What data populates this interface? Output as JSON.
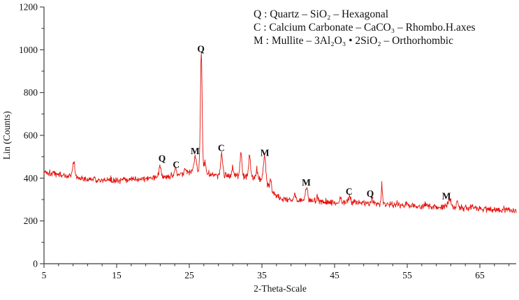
{
  "figure": {
    "kind": "xrd-diffractogram",
    "background": "#ffffff"
  },
  "chart_data": {
    "type": "line",
    "title": "",
    "xlabel": "2-Theta-Scale",
    "ylabel": "Lin (Counts)",
    "xlim": [
      5,
      70
    ],
    "ylim": [
      0,
      1200
    ],
    "x_major_ticks": [
      5,
      15,
      25,
      35,
      45,
      55,
      65
    ],
    "x_minor_step": 2,
    "y_major_ticks": [
      0,
      200,
      400,
      600,
      800,
      1000,
      1200
    ],
    "y_minor_step": 100,
    "grid": false,
    "legend_position": "top-center",
    "legend": [
      "Q : Quartz – SiO₂ – Hexagonal",
      "C : Calcium Carbonate – CaCO₃ – Rhombo.H.axes",
      "M : Mullite – 3Al₂O₃ • 2SiO₂ – Orthorhombic"
    ],
    "trace_color": "#e3120b",
    "axis_color": "#3a3a3a",
    "text_color": "#111111",
    "noise_amplitude": 14,
    "baseline": [
      [
        5,
        430
      ],
      [
        7,
        418
      ],
      [
        9,
        405
      ],
      [
        11,
        396
      ],
      [
        14,
        388
      ],
      [
        17,
        392
      ],
      [
        20,
        402
      ],
      [
        23,
        412
      ],
      [
        25,
        424
      ],
      [
        26.5,
        438
      ],
      [
        28,
        420
      ],
      [
        30,
        414
      ],
      [
        32,
        410
      ],
      [
        34,
        404
      ],
      [
        35.5,
        390
      ],
      [
        36.3,
        340
      ],
      [
        37,
        316
      ],
      [
        38,
        302
      ],
      [
        40,
        296
      ],
      [
        43,
        292
      ],
      [
        46,
        289
      ],
      [
        49,
        286
      ],
      [
        52,
        278
      ],
      [
        55,
        271
      ],
      [
        58,
        267
      ],
      [
        60,
        266
      ],
      [
        62,
        262
      ],
      [
        65,
        257
      ],
      [
        68,
        251
      ],
      [
        70,
        248
      ]
    ],
    "peaks": [
      {
        "x": 9.1,
        "amp": 70,
        "sig": 0.15
      },
      {
        "x": 21.0,
        "amp": 55,
        "sig": 0.15,
        "label": "Q"
      },
      {
        "x": 23.1,
        "amp": 36,
        "sig": 0.14,
        "label": "C"
      },
      {
        "x": 24.4,
        "amp": 24,
        "sig": 0.12
      },
      {
        "x": 25.8,
        "amp": 68,
        "sig": 0.18,
        "label": "M"
      },
      {
        "x": 26.65,
        "amp": 545,
        "sig": 0.12,
        "label": "Q"
      },
      {
        "x": 27.15,
        "amp": 50,
        "sig": 0.1
      },
      {
        "x": 29.45,
        "amp": 95,
        "sig": 0.15,
        "label": "C"
      },
      {
        "x": 31.0,
        "amp": 40,
        "sig": 0.12
      },
      {
        "x": 32.1,
        "amp": 110,
        "sig": 0.12
      },
      {
        "x": 33.3,
        "amp": 102,
        "sig": 0.12
      },
      {
        "x": 34.3,
        "amp": 48,
        "sig": 0.1
      },
      {
        "x": 35.35,
        "amp": 112,
        "sig": 0.15,
        "label": "M"
      },
      {
        "x": 36.2,
        "amp": 55,
        "sig": 0.1
      },
      {
        "x": 39.5,
        "amp": 25,
        "sig": 0.12
      },
      {
        "x": 41.15,
        "amp": 60,
        "sig": 0.15,
        "label": "M"
      },
      {
        "x": 42.6,
        "amp": 24,
        "sig": 0.1
      },
      {
        "x": 45.8,
        "amp": 20,
        "sig": 0.1
      },
      {
        "x": 47.1,
        "amp": 30,
        "sig": 0.12,
        "label": "C"
      },
      {
        "x": 50.15,
        "amp": 24,
        "sig": 0.1,
        "label": "Q"
      },
      {
        "x": 51.5,
        "amp": 92,
        "sig": 0.08
      },
      {
        "x": 54.9,
        "amp": 16,
        "sig": 0.1
      },
      {
        "x": 57.5,
        "amp": 14,
        "sig": 0.1
      },
      {
        "x": 60.8,
        "amp": 34,
        "sig": 0.2,
        "label": "M"
      },
      {
        "x": 61.9,
        "amp": 28,
        "sig": 0.12
      },
      {
        "x": 64.0,
        "amp": 18,
        "sig": 0.1
      },
      {
        "x": 68.3,
        "amp": 16,
        "sig": 0.1
      }
    ],
    "annotations": [
      {
        "text": "Q",
        "x": 21.25,
        "y": 478
      },
      {
        "text": "C",
        "x": 23.2,
        "y": 448
      },
      {
        "text": "M",
        "x": 25.8,
        "y": 512
      },
      {
        "text": "Q",
        "x": 26.6,
        "y": 990
      },
      {
        "text": "C",
        "x": 29.4,
        "y": 526
      },
      {
        "text": "M",
        "x": 35.4,
        "y": 504
      },
      {
        "text": "M",
        "x": 41.1,
        "y": 366
      },
      {
        "text": "C",
        "x": 47.0,
        "y": 323
      },
      {
        "text": "Q",
        "x": 49.9,
        "y": 313
      },
      {
        "text": "M",
        "x": 60.4,
        "y": 301
      }
    ]
  }
}
